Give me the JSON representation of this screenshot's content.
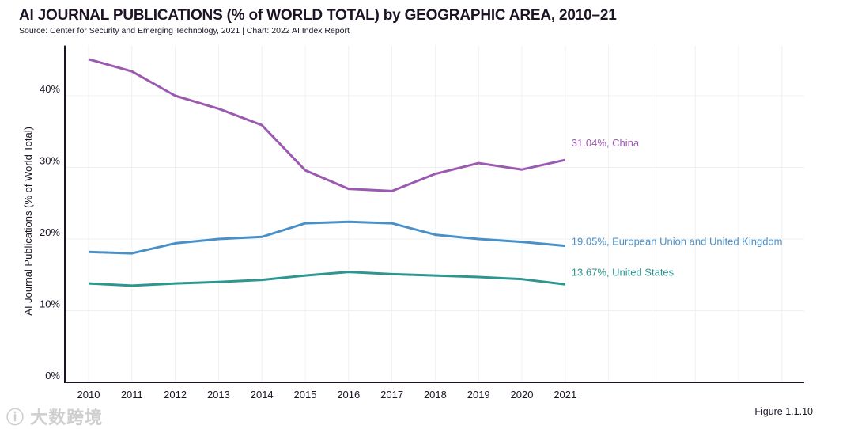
{
  "chart_data": {
    "type": "line",
    "title": "AI JOURNAL PUBLICATIONS (% of WORLD TOTAL) by GEOGRAPHIC AREA, 2010–21",
    "subtitle": "Source: Center for Security and Emerging Technology, 2021 | Chart: 2022 AI Index Report",
    "xlabel": "",
    "ylabel": "AI Journal Publications (% of World Total)",
    "x": [
      2010,
      2011,
      2012,
      2013,
      2014,
      2015,
      2016,
      2017,
      2018,
      2019,
      2020,
      2021
    ],
    "xlim": [
      2010,
      2026
    ],
    "ylim": [
      0,
      47
    ],
    "yticks": [
      0,
      10,
      20,
      30,
      40
    ],
    "ytick_labels": [
      "0%",
      "10%",
      "20%",
      "30%",
      "40%"
    ],
    "grid": true,
    "series": [
      {
        "name": "China",
        "color": "#9b59b0",
        "label": "31.04%, China",
        "values": [
          45.1,
          43.4,
          40.0,
          38.2,
          35.9,
          29.6,
          27.0,
          26.7,
          29.1,
          30.6,
          29.7,
          31.04
        ]
      },
      {
        "name": "European Union and United Kingdom",
        "color": "#4a90c8",
        "label": "19.05%, European Union and United Kingdom",
        "values": [
          18.2,
          18.0,
          19.4,
          20.0,
          20.3,
          22.2,
          22.4,
          22.2,
          20.6,
          20.0,
          19.6,
          19.05
        ]
      },
      {
        "name": "United States",
        "color": "#2e9690",
        "label": "13.67%, United States",
        "values": [
          13.8,
          13.5,
          13.8,
          14.0,
          14.3,
          14.9,
          15.4,
          15.1,
          14.9,
          14.7,
          14.4,
          13.67
        ]
      }
    ]
  },
  "figure_label": "Figure 1.1.10",
  "watermark": "大数跨境"
}
